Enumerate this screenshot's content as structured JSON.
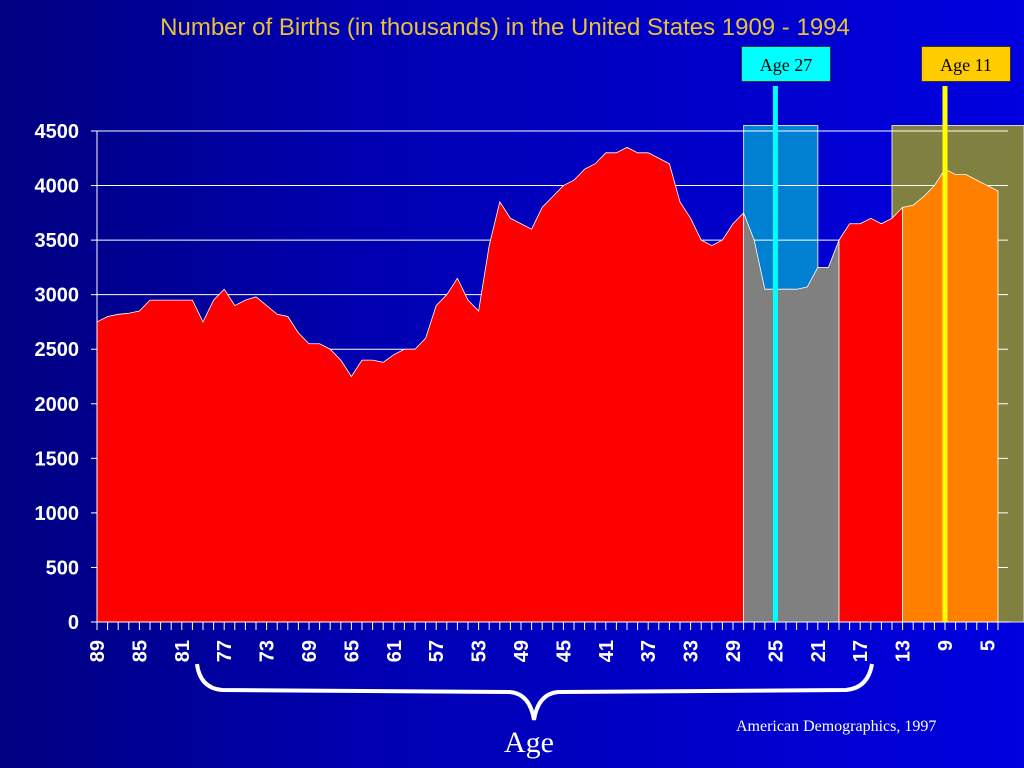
{
  "colors": {
    "fill": "#ff0000",
    "gap_fill": "#808080",
    "highlight_fill": "#ff8000",
    "band27": "#0080d0",
    "band11": "#808040",
    "line27": "#00ffff",
    "line11": "#ffff00",
    "text": "#ffffff",
    "title": "#e8c040"
  },
  "source": "American Demographics, 1997",
  "age_label": "Age",
  "markers": {
    "age27": "Age 27",
    "age11": "Age 11"
  },
  "chart_data": {
    "type": "area",
    "title": "Number of Births (in thousands) in the United States 1909 - 1994",
    "xlabel": "Age",
    "ylabel": "",
    "x_order": "descending",
    "xlim": [
      89,
      4
    ],
    "ylim": [
      0,
      4500
    ],
    "yticks": [
      0,
      500,
      1000,
      1500,
      2000,
      2500,
      3000,
      3500,
      4000,
      4500
    ],
    "xticks": [
      89,
      85,
      81,
      77,
      73,
      69,
      65,
      61,
      57,
      53,
      49,
      45,
      41,
      37,
      33,
      29,
      25,
      21,
      17,
      13,
      9,
      5
    ],
    "grid": true,
    "x": [
      89,
      88,
      87,
      86,
      85,
      84,
      83,
      82,
      81,
      80,
      79,
      78,
      77,
      76,
      75,
      74,
      73,
      72,
      71,
      70,
      69,
      68,
      67,
      66,
      65,
      64,
      63,
      62,
      61,
      60,
      59,
      58,
      57,
      56,
      55,
      54,
      53,
      52,
      51,
      50,
      49,
      48,
      47,
      46,
      45,
      44,
      43,
      42,
      41,
      40,
      39,
      38,
      37,
      36,
      35,
      34,
      33,
      32,
      31,
      30,
      29,
      28,
      27,
      26,
      25,
      24,
      23,
      22,
      21,
      20,
      19,
      18,
      17,
      16,
      15,
      14,
      13,
      12,
      11,
      10,
      9,
      8,
      7,
      6,
      5,
      4
    ],
    "values": [
      2750,
      2800,
      2820,
      2830,
      2850,
      2950,
      2950,
      2950,
      2950,
      2950,
      2750,
      2950,
      3050,
      2900,
      2950,
      2980,
      2900,
      2820,
      2800,
      2650,
      2550,
      2550,
      2500,
      2400,
      2250,
      2400,
      2400,
      2380,
      2450,
      2500,
      2500,
      2600,
      2900,
      3000,
      3150,
      2950,
      2850,
      3450,
      3850,
      3700,
      3650,
      3600,
      3800,
      3900,
      4000,
      4050,
      4150,
      4200,
      4300,
      4300,
      4350,
      4300,
      4300,
      4250,
      4200,
      3850,
      3700,
      3500,
      3450,
      3500,
      3650,
      3750,
      3500,
      3050,
      3050,
      3050,
      3050,
      3070,
      3250,
      3250,
      3500,
      3650,
      3650,
      3700,
      3650,
      3700,
      3800,
      3820,
      3900,
      4000,
      4150,
      4100,
      4100,
      4050,
      4000,
      3950
    ],
    "gap_range": [
      28,
      19
    ],
    "highlight_range": [
      13,
      4
    ],
    "bands": [
      {
        "from": 28,
        "to": 21
      },
      {
        "from": 14,
        "to": 4
      }
    ],
    "marker_ages": [
      25,
      9
    ]
  }
}
